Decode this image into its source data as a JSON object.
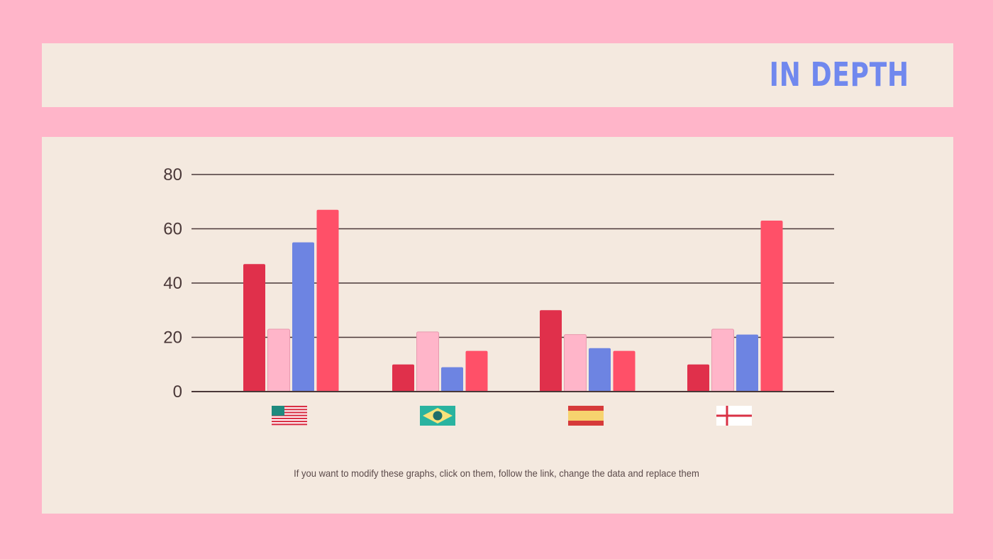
{
  "slide": {
    "title": "IN DEPTH",
    "caption": "If you want to modify these graphs, click on them, follow the link, change the data and replace them"
  },
  "colors": {
    "background": "#ffb5c9",
    "panel": "#f4e9df",
    "title": "#7088ee",
    "gridline": "#4a3838",
    "axis_text": "#4a3838"
  },
  "chart_data": {
    "type": "bar",
    "categories": [
      "usa-flag",
      "brazil-flag",
      "spain-flag",
      "england-flag"
    ],
    "category_icons": [
      "usa-flag-icon",
      "brazil-flag-icon",
      "spain-flag-icon",
      "england-flag-icon"
    ],
    "series": [
      {
        "values": [
          47,
          10,
          30,
          10
        ],
        "color": "#e0304b"
      },
      {
        "values": [
          23,
          22,
          21,
          23
        ],
        "color": "#ffb5c9"
      },
      {
        "values": [
          55,
          9,
          16,
          21
        ],
        "color": "#6d84e2"
      },
      {
        "values": [
          67,
          15,
          15,
          63
        ],
        "color": "#ff5068"
      }
    ],
    "ylim": [
      0,
      80
    ],
    "yticks": [
      0,
      20,
      40,
      60,
      80
    ],
    "grid": true,
    "legend": "none"
  }
}
